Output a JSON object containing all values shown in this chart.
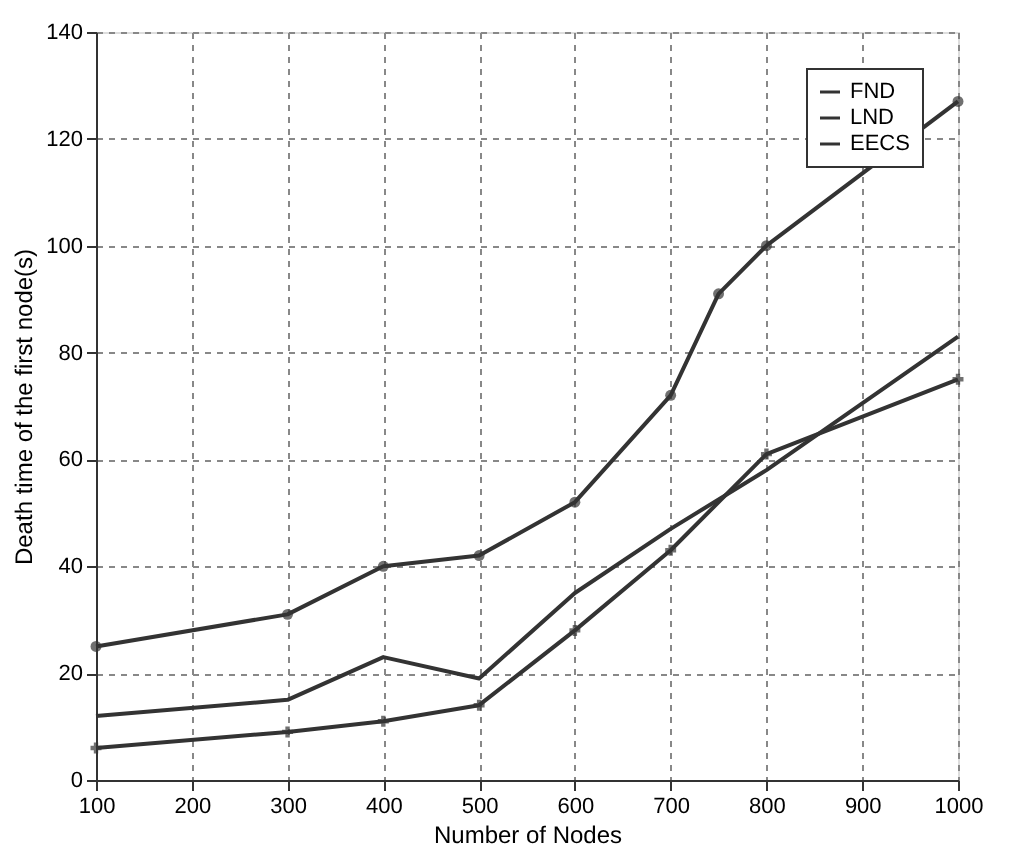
{
  "chart_data": {
    "type": "line",
    "xlabel": "Number of Nodes",
    "ylabel": "Death time of the first node(s)",
    "xlim": [
      100,
      1000
    ],
    "xticks": [
      100,
      200,
      300,
      400,
      500,
      600,
      700,
      800,
      900,
      1000
    ],
    "ylim": [
      0,
      140
    ],
    "yticks": [
      0,
      20,
      40,
      60,
      80,
      100,
      120,
      140
    ],
    "grid": true,
    "legend": "top right",
    "line_style": "solid",
    "series": [
      {
        "name": "FND",
        "color": "#333333",
        "marker": "circle",
        "x": [
          100,
          300,
          400,
          500,
          600,
          700,
          750,
          800,
          1000
        ],
        "values": [
          25,
          31,
          40,
          42,
          52,
          72,
          91,
          100,
          127
        ]
      },
      {
        "name": "LND",
        "color": "#333333",
        "marker": "cross",
        "x": [
          100,
          300,
          400,
          500,
          600,
          700,
          800,
          1000
        ],
        "values": [
          6,
          9,
          11,
          14,
          28,
          43,
          61,
          75
        ]
      },
      {
        "name": "EECS",
        "color": "#333333",
        "marker": "none",
        "x": [
          100,
          300,
          400,
          500,
          600,
          700,
          800,
          1000
        ],
        "values": [
          12,
          15,
          23,
          19,
          35,
          47,
          58,
          83
        ]
      }
    ]
  }
}
